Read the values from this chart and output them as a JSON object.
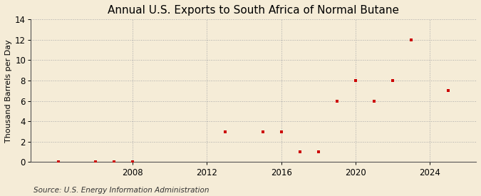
{
  "title": "Annual U.S. Exports to South Africa of Normal Butane",
  "ylabel": "Thousand Barrels per Day",
  "source": "Source: U.S. Energy Information Administration",
  "background_color": "#f5ecd7",
  "marker_color": "#cc0000",
  "years": [
    2004,
    2006,
    2007,
    2008,
    2013,
    2015,
    2016,
    2017,
    2018,
    2019,
    2020,
    2021,
    2022,
    2023,
    2025
  ],
  "values": [
    0.0,
    0.0,
    0.0,
    0.0,
    3.0,
    3.0,
    3.0,
    1.0,
    1.0,
    6.0,
    8.0,
    6.0,
    8.0,
    12.0,
    7.0
  ],
  "xlim": [
    2002.5,
    2026.5
  ],
  "ylim": [
    0,
    14
  ],
  "xticks": [
    2008,
    2012,
    2016,
    2020,
    2024
  ],
  "yticks": [
    0,
    2,
    4,
    6,
    8,
    10,
    12,
    14
  ],
  "title_fontsize": 11,
  "label_fontsize": 8,
  "tick_fontsize": 8.5,
  "source_fontsize": 7.5
}
